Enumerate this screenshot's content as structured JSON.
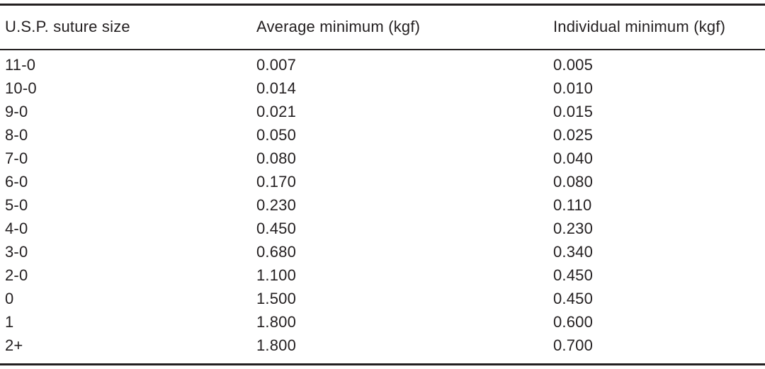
{
  "table": {
    "headers": [
      "U.S.P. suture size",
      "Average minimum (kgf)",
      "Individual minimum (kgf)"
    ],
    "rows": [
      [
        "11-0",
        "0.007",
        "0.005"
      ],
      [
        "10-0",
        "0.014",
        "0.010"
      ],
      [
        "9-0",
        "0.021",
        "0.015"
      ],
      [
        "8-0",
        "0.050",
        "0.025"
      ],
      [
        "7-0",
        "0.080",
        "0.040"
      ],
      [
        "6-0",
        "0.170",
        "0.080"
      ],
      [
        "5-0",
        "0.230",
        "0.110"
      ],
      [
        "4-0",
        "0.450",
        "0.230"
      ],
      [
        "3-0",
        "0.680",
        "0.340"
      ],
      [
        "2-0",
        "1.100",
        "0.450"
      ],
      [
        "0",
        "1.500",
        "0.450"
      ],
      [
        "1",
        "1.800",
        "0.600"
      ],
      [
        "2+",
        "1.800",
        "0.700"
      ]
    ]
  }
}
